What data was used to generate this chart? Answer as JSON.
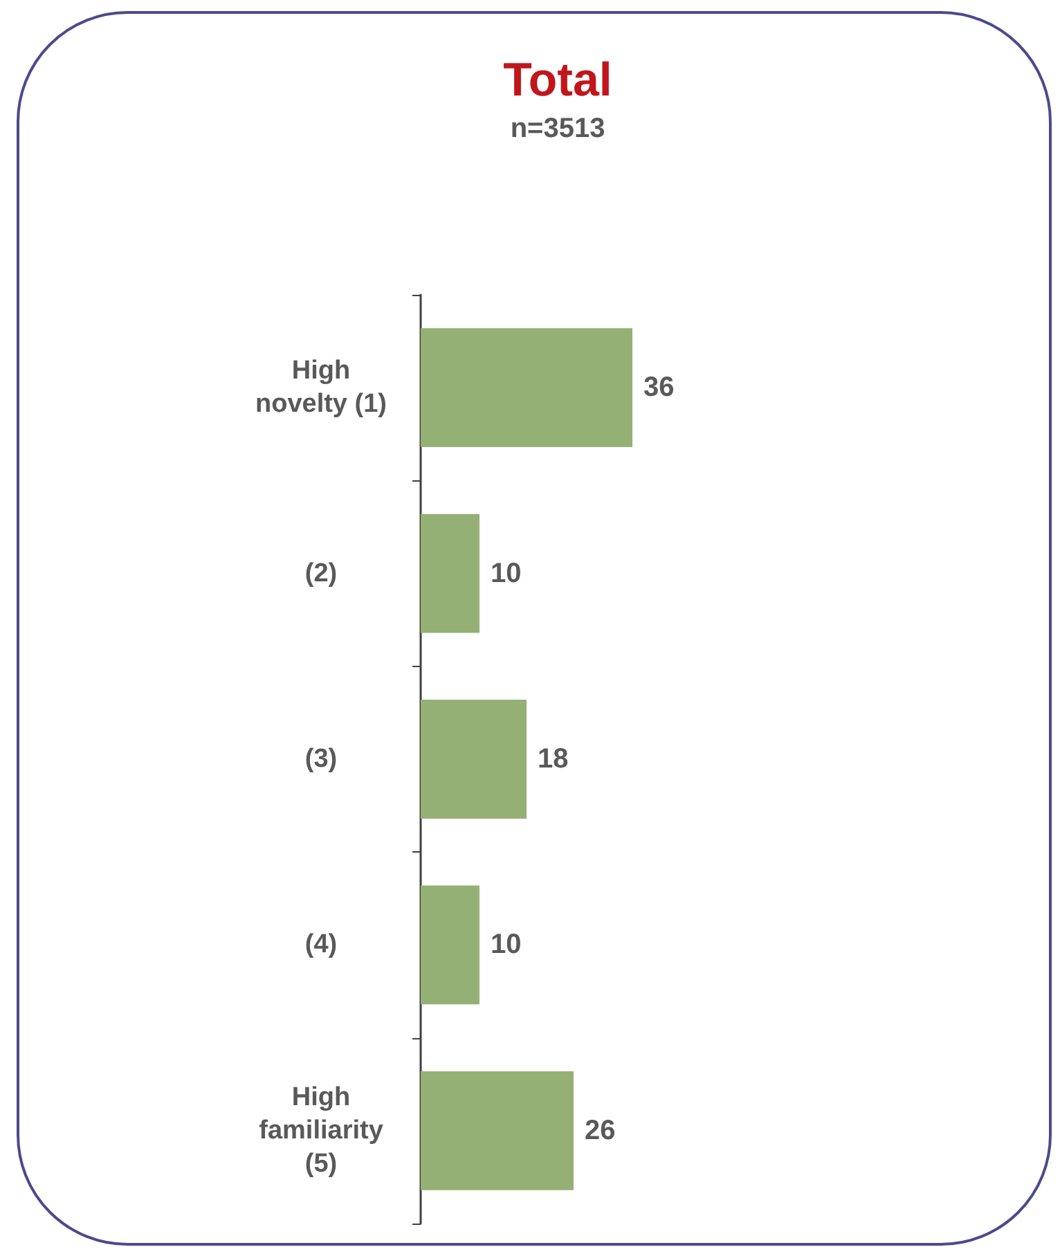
{
  "chart_data": {
    "type": "bar",
    "orientation": "horizontal",
    "title": "Total",
    "subtitle": "n=3513",
    "categories": [
      "High\nnovelty (1)",
      "(2)",
      "(3)",
      "(4)",
      "High\nfamiliarity\n(5)"
    ],
    "values": [
      36,
      10,
      18,
      10,
      26
    ],
    "color": "#95b075",
    "data_labels": true
  }
}
